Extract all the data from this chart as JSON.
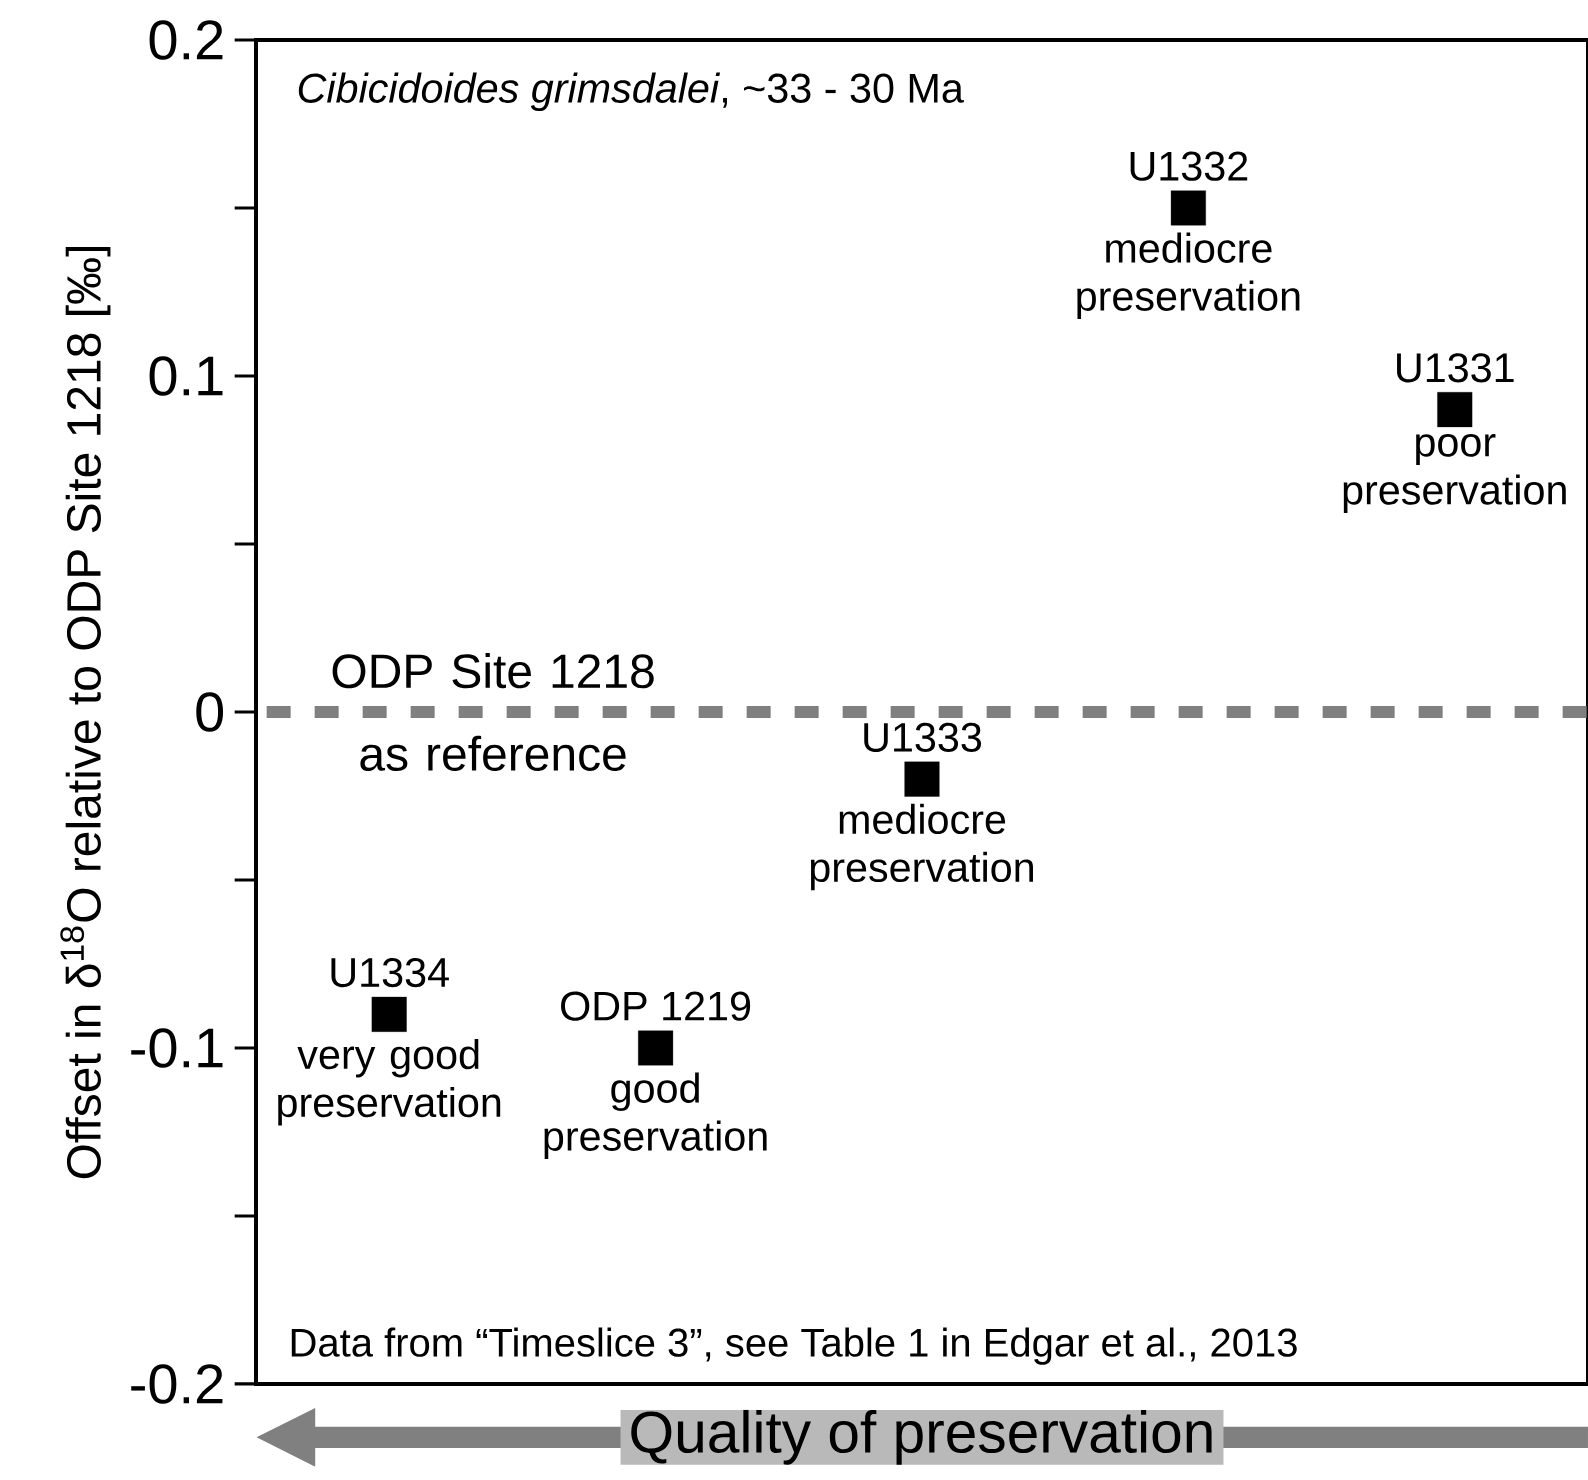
{
  "chart_data": {
    "type": "scatter",
    "title": "*Cibicidoides grimsdalei*, ~33 - 30 Ma",
    "xlabel": "Quality of preservation",
    "ylabel": "Offset in δ$^{18}$O relative to ODP Site 1218 [‰]",
    "categories": [
      null,
      null,
      null,
      null,
      null
    ],
    "series": [
      {
        "name": "U1334",
        "color": "#000000",
        "values": [
          -0.09,
          null,
          null,
          null,
          null
        ]
      },
      {
        "name": "ODP 1219",
        "color": "#000000",
        "values": [
          null,
          -0.1,
          null,
          null,
          null
        ]
      },
      {
        "name": "U1333",
        "color": "#000000",
        "values": [
          null,
          null,
          -0.02,
          null,
          null
        ]
      },
      {
        "name": "U1332",
        "color": "#000000",
        "values": [
          null,
          null,
          null,
          0.15,
          null
        ]
      },
      {
        "name": "U1331",
        "color": "#000000",
        "values": [
          null,
          null,
          null,
          null,
          0.09
        ]
      }
    ],
    "marker": "square",
    "ylim": [
      -0.2,
      0.2
    ],
    "yticks": [
      -0.2,
      -0.1,
      0,
      0.1,
      0.2
    ],
    "ref_lines": [
      {
        "axis": "y",
        "value": 0,
        "label": "ODP Site 1218 as reference",
        "color": "#808080",
        "line_style": "dashed"
      }
    ],
    "annotations": [
      "very good preservation",
      "good preservation",
      "mediocre preservation",
      "mediocre preservation",
      "poor preservation",
      "Data from “Timeslice 3”, see Table 1 in Edgar et al., 2013"
    ]
  }
}
